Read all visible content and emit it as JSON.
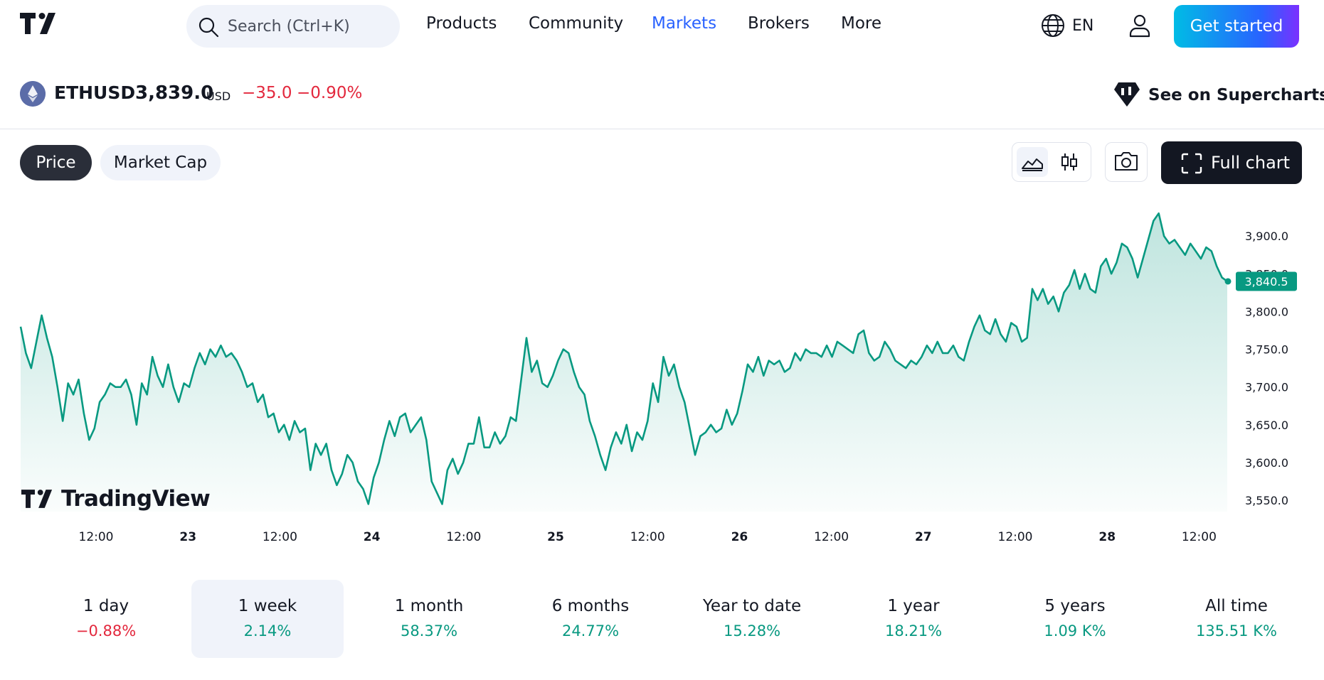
{
  "header": {
    "search_placeholder": "Search (Ctrl+K)",
    "nav": [
      "Products",
      "Community",
      "Markets",
      "Brokers",
      "More"
    ],
    "active_nav": "Markets",
    "language": "EN",
    "cta_label": "Get started"
  },
  "symbol": {
    "ticker": "ETHUSD",
    "price": "3,839.0",
    "currency": "USD",
    "change": "−35.0",
    "change_pct": "−0.90%",
    "supercharts_label": "See on Supercharts"
  },
  "tabs": [
    {
      "label": "Price",
      "active": true
    },
    {
      "label": "Market Cap",
      "active": false
    }
  ],
  "toolbar": {
    "full_chart_label": "Full chart",
    "icons": [
      "area-chart-icon",
      "candles-icon",
      "camera-icon",
      "fullscreen-icon"
    ]
  },
  "watermark": "TradingView",
  "colors": {
    "accent": "#2962ff",
    "line": "#089981",
    "negative": "#e3283d",
    "dark": "#131722"
  },
  "chart_data": {
    "type": "area",
    "x_labels": [
      "12:00",
      "23",
      "12:00",
      "24",
      "12:00",
      "25",
      "12:00",
      "26",
      "12:00",
      "27",
      "12:00",
      "28",
      "12:00"
    ],
    "y_ticks": [
      "3,900.0",
      "3,850.0",
      "3,800.0",
      "3,750.0",
      "3,700.0",
      "3,650.0",
      "3,600.0",
      "3,550.0"
    ],
    "ylim": [
      3535,
      3935
    ],
    "last_value_label": "3,840.5",
    "series": [
      {
        "values": [
          3780,
          3745,
          3725,
          3760,
          3795,
          3765,
          3740,
          3700,
          3655,
          3705,
          3690,
          3710,
          3665,
          3630,
          3645,
          3680,
          3690,
          3705,
          3700,
          3700,
          3710,
          3690,
          3650,
          3705,
          3690,
          3740,
          3715,
          3700,
          3730,
          3700,
          3680,
          3705,
          3700,
          3725,
          3745,
          3730,
          3750,
          3740,
          3755,
          3740,
          3745,
          3735,
          3720,
          3700,
          3705,
          3680,
          3690,
          3660,
          3665,
          3640,
          3650,
          3630,
          3655,
          3640,
          3645,
          3590,
          3625,
          3610,
          3625,
          3590,
          3570,
          3585,
          3610,
          3600,
          3575,
          3565,
          3545,
          3580,
          3600,
          3630,
          3655,
          3635,
          3660,
          3665,
          3640,
          3650,
          3660,
          3630,
          3575,
          3560,
          3545,
          3590,
          3605,
          3585,
          3600,
          3625,
          3625,
          3660,
          3620,
          3620,
          3640,
          3625,
          3635,
          3660,
          3655,
          3710,
          3765,
          3720,
          3735,
          3705,
          3700,
          3715,
          3735,
          3750,
          3745,
          3720,
          3700,
          3690,
          3655,
          3635,
          3610,
          3590,
          3620,
          3640,
          3625,
          3650,
          3615,
          3640,
          3630,
          3655,
          3705,
          3680,
          3740,
          3715,
          3730,
          3700,
          3680,
          3645,
          3610,
          3635,
          3640,
          3650,
          3640,
          3645,
          3670,
          3650,
          3665,
          3695,
          3730,
          3720,
          3740,
          3715,
          3735,
          3730,
          3735,
          3720,
          3725,
          3745,
          3735,
          3750,
          3745,
          3745,
          3740,
          3755,
          3740,
          3760,
          3755,
          3750,
          3745,
          3770,
          3775,
          3745,
          3735,
          3740,
          3760,
          3750,
          3735,
          3730,
          3725,
          3735,
          3730,
          3740,
          3755,
          3745,
          3760,
          3745,
          3745,
          3755,
          3740,
          3735,
          3760,
          3780,
          3795,
          3775,
          3770,
          3790,
          3770,
          3760,
          3785,
          3780,
          3760,
          3765,
          3830,
          3815,
          3830,
          3810,
          3820,
          3800,
          3825,
          3835,
          3855,
          3830,
          3850,
          3830,
          3825,
          3860,
          3870,
          3850,
          3865,
          3890,
          3885,
          3870,
          3845,
          3870,
          3895,
          3920,
          3930,
          3900,
          3890,
          3895,
          3885,
          3875,
          3890,
          3880,
          3870,
          3885,
          3880,
          3860,
          3845,
          3840
        ]
      }
    ]
  },
  "periods": [
    {
      "label": "1 day",
      "value": "−0.88%",
      "sign": "neg"
    },
    {
      "label": "1 week",
      "value": "2.14%",
      "sign": "pos",
      "selected": true
    },
    {
      "label": "1 month",
      "value": "58.37%",
      "sign": "pos"
    },
    {
      "label": "6 months",
      "value": "24.77%",
      "sign": "pos"
    },
    {
      "label": "Year to date",
      "value": "15.28%",
      "sign": "pos"
    },
    {
      "label": "1 year",
      "value": "18.21%",
      "sign": "pos"
    },
    {
      "label": "5 years",
      "value": "1.09 K%",
      "sign": "pos"
    },
    {
      "label": "All time",
      "value": "135.51 K%",
      "sign": "pos"
    }
  ]
}
